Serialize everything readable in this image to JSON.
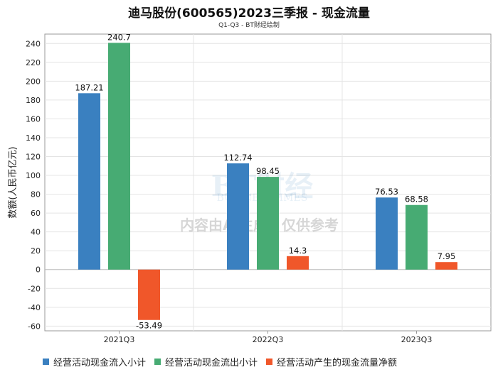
{
  "chart_data": {
    "type": "bar",
    "title": "迪马股份(600565)2023三季报 - 现金流量",
    "subtitle": "Q1-Q3 - BT财经绘制",
    "ylabel": "数额(人民币亿元)",
    "xlabel": "",
    "ylim": [
      -65,
      250
    ],
    "yticks": [
      -60,
      -40,
      -20,
      0,
      20,
      40,
      60,
      80,
      100,
      120,
      140,
      160,
      180,
      200,
      220,
      240
    ],
    "categories": [
      "2021Q3",
      "2022Q3",
      "2023Q3"
    ],
    "series": [
      {
        "name": "经营活动现金流入小计",
        "color": "#3a80c0",
        "values": [
          187.21,
          112.74,
          76.53
        ],
        "labels": [
          "187.21",
          "112.74",
          "76.53"
        ]
      },
      {
        "name": "经营活动现金流出小计",
        "color": "#47ab73",
        "values": [
          240.7,
          98.45,
          68.58
        ],
        "labels": [
          "240.7",
          "98.45",
          "68.58"
        ]
      },
      {
        "name": "经营活动产生的现金流量净额",
        "color": "#f0572a",
        "values": [
          -53.49,
          14.3,
          7.95
        ],
        "labels": [
          "-53.49",
          "14.3",
          "7.95"
        ]
      }
    ],
    "legend_position": "bottom",
    "grid": true,
    "watermark": {
      "logo": "BT财经",
      "logo_sub": "BUSINESSTIMES",
      "text": "内容由AI生成，仅供参考"
    }
  }
}
